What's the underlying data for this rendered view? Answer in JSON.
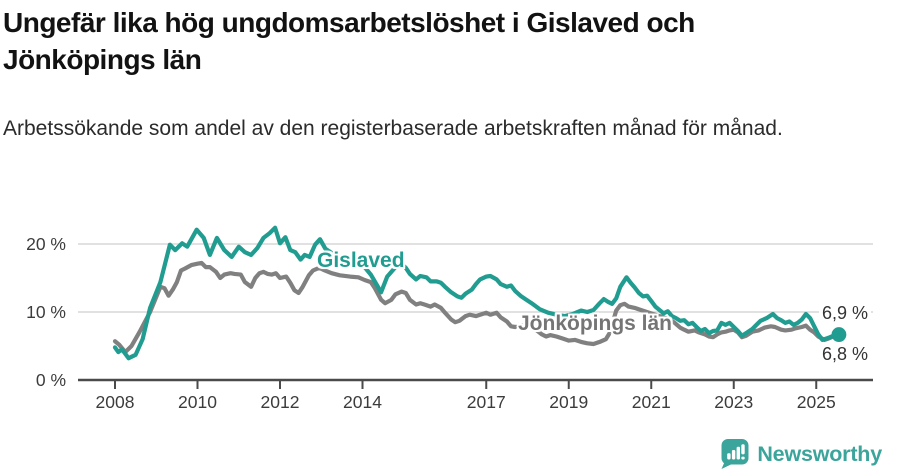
{
  "header": {
    "title": "Ungefär lika hög ungdomsarbetslöshet i Gislaved och Jönköpings län",
    "subtitle": "Arbetssökande som andel av den registerbaserade arbetskraften månad för månad."
  },
  "chart_data": {
    "type": "line",
    "title": "Ungefär lika hög ungdomsarbetslöshet i Gislaved och Jönköpings län",
    "xlabel": "",
    "ylabel": "Arbetssökande som andel av den registerbaserade arbetskraften",
    "x_unit": "decimal-year (månadsdata)",
    "y_unit": "percent",
    "ylim": [
      0,
      23.5
    ],
    "xlim": [
      2007.9,
      2026.5
    ],
    "grid": "horizontal",
    "legend_position": "inline-labels",
    "yticks": [
      {
        "value": 0,
        "label": "0 %"
      },
      {
        "value": 10,
        "label": "10 %"
      },
      {
        "value": 20,
        "label": "20 %"
      }
    ],
    "xticks": [
      {
        "value": 2008,
        "label": "2008"
      },
      {
        "value": 2010,
        "label": "2010"
      },
      {
        "value": 2012,
        "label": "2012"
      },
      {
        "value": 2014,
        "label": "2014"
      },
      {
        "value": 2017,
        "label": "2017"
      },
      {
        "value": 2019,
        "label": "2019"
      },
      {
        "value": 2021,
        "label": "2021"
      },
      {
        "value": 2023,
        "label": "2023"
      },
      {
        "value": 2025,
        "label": "2025"
      }
    ],
    "series": [
      {
        "name": "Gislaved",
        "color": "#219c90",
        "end_label": "6,9 %",
        "end_value": 6.9,
        "points": [
          [
            2008.0,
            4.8
          ],
          [
            2008.08,
            4.1
          ],
          [
            2008.17,
            4.5
          ],
          [
            2008.33,
            3.2
          ],
          [
            2008.5,
            3.7
          ],
          [
            2008.67,
            6.0
          ],
          [
            2008.85,
            10.6
          ],
          [
            2009.1,
            14.4
          ],
          [
            2009.33,
            19.9
          ],
          [
            2009.46,
            19.1
          ],
          [
            2009.63,
            20.1
          ],
          [
            2009.75,
            19.6
          ],
          [
            2009.98,
            22.1
          ],
          [
            2010.15,
            20.9
          ],
          [
            2010.3,
            18.4
          ],
          [
            2010.47,
            20.9
          ],
          [
            2010.65,
            19.1
          ],
          [
            2010.83,
            18.1
          ],
          [
            2011.0,
            19.6
          ],
          [
            2011.15,
            18.8
          ],
          [
            2011.3,
            18.4
          ],
          [
            2011.45,
            19.4
          ],
          [
            2011.6,
            20.9
          ],
          [
            2011.75,
            21.6
          ],
          [
            2011.88,
            22.4
          ],
          [
            2012.0,
            20.1
          ],
          [
            2012.13,
            21.0
          ],
          [
            2012.25,
            19.1
          ],
          [
            2012.37,
            18.8
          ],
          [
            2012.5,
            17.7
          ],
          [
            2012.6,
            18.4
          ],
          [
            2012.72,
            18.1
          ],
          [
            2012.85,
            19.9
          ],
          [
            2012.97,
            20.7
          ],
          [
            2013.1,
            19.3
          ],
          [
            2013.3,
            18.5
          ],
          [
            2013.55,
            17.8
          ],
          [
            2013.8,
            17.5
          ],
          [
            2014.05,
            16.6
          ],
          [
            2014.2,
            15.5
          ],
          [
            2014.45,
            12.9
          ],
          [
            2014.6,
            15.2
          ],
          [
            2014.8,
            16.6
          ],
          [
            2014.95,
            17.1
          ],
          [
            2015.05,
            16.5
          ],
          [
            2015.15,
            15.6
          ],
          [
            2015.3,
            14.8
          ],
          [
            2015.4,
            15.3
          ],
          [
            2015.55,
            15.1
          ],
          [
            2015.65,
            14.5
          ],
          [
            2015.8,
            14.5
          ],
          [
            2015.9,
            14.3
          ],
          [
            2016.0,
            13.7
          ],
          [
            2016.15,
            12.9
          ],
          [
            2016.3,
            12.3
          ],
          [
            2016.4,
            12.1
          ],
          [
            2016.5,
            12.7
          ],
          [
            2016.65,
            13.3
          ],
          [
            2016.75,
            14.1
          ],
          [
            2016.85,
            14.8
          ],
          [
            2017.0,
            15.2
          ],
          [
            2017.1,
            15.3
          ],
          [
            2017.25,
            14.8
          ],
          [
            2017.35,
            14.1
          ],
          [
            2017.5,
            13.7
          ],
          [
            2017.6,
            13.9
          ],
          [
            2017.7,
            13.1
          ],
          [
            2017.85,
            12.3
          ],
          [
            2017.95,
            11.9
          ],
          [
            2018.1,
            11.3
          ],
          [
            2018.3,
            10.4
          ],
          [
            2018.5,
            9.9
          ],
          [
            2018.7,
            9.6
          ],
          [
            2018.9,
            9.4
          ],
          [
            2019.1,
            9.7
          ],
          [
            2019.3,
            10.2
          ],
          [
            2019.45,
            10.0
          ],
          [
            2019.6,
            10.3
          ],
          [
            2019.75,
            11.3
          ],
          [
            2019.85,
            11.9
          ],
          [
            2019.95,
            11.5
          ],
          [
            2020.05,
            11.2
          ],
          [
            2020.15,
            12.0
          ],
          [
            2020.25,
            13.7
          ],
          [
            2020.4,
            15.1
          ],
          [
            2020.5,
            14.3
          ],
          [
            2020.6,
            13.6
          ],
          [
            2020.7,
            12.8
          ],
          [
            2020.8,
            12.3
          ],
          [
            2020.9,
            12.4
          ],
          [
            2021.0,
            11.6
          ],
          [
            2021.1,
            10.8
          ],
          [
            2021.2,
            10.3
          ],
          [
            2021.3,
            9.8
          ],
          [
            2021.4,
            10.1
          ],
          [
            2021.5,
            9.4
          ],
          [
            2021.6,
            9.1
          ],
          [
            2021.7,
            8.7
          ],
          [
            2021.8,
            8.8
          ],
          [
            2021.9,
            8.2
          ],
          [
            2022.0,
            8.4
          ],
          [
            2022.1,
            7.8
          ],
          [
            2022.2,
            7.2
          ],
          [
            2022.3,
            7.5
          ],
          [
            2022.4,
            6.9
          ],
          [
            2022.5,
            7.2
          ],
          [
            2022.6,
            7.3
          ],
          [
            2022.7,
            8.4
          ],
          [
            2022.8,
            8.1
          ],
          [
            2022.9,
            8.4
          ],
          [
            2023.0,
            7.8
          ],
          [
            2023.1,
            7.2
          ],
          [
            2023.2,
            6.5
          ],
          [
            2023.3,
            6.9
          ],
          [
            2023.45,
            7.5
          ],
          [
            2023.55,
            8.1
          ],
          [
            2023.65,
            8.7
          ],
          [
            2023.8,
            9.1
          ],
          [
            2023.95,
            9.7
          ],
          [
            2024.05,
            9.1
          ],
          [
            2024.15,
            8.8
          ],
          [
            2024.25,
            8.4
          ],
          [
            2024.35,
            8.6
          ],
          [
            2024.45,
            8.1
          ],
          [
            2024.55,
            8.4
          ],
          [
            2024.65,
            8.9
          ],
          [
            2024.75,
            9.7
          ],
          [
            2024.85,
            9.1
          ],
          [
            2024.95,
            7.9
          ],
          [
            2025.05,
            6.7
          ],
          [
            2025.15,
            5.9
          ],
          [
            2025.3,
            6.2
          ],
          [
            2025.45,
            6.6
          ],
          [
            2025.55,
            6.9
          ]
        ]
      },
      {
        "name": "Jönköpings län",
        "color": "#808080",
        "end_label": "6,8 %",
        "end_value": 6.8,
        "points": [
          [
            2008.0,
            5.7
          ],
          [
            2008.1,
            5.2
          ],
          [
            2008.25,
            4.1
          ],
          [
            2008.4,
            5.0
          ],
          [
            2008.6,
            7.1
          ],
          [
            2008.85,
            10.0
          ],
          [
            2009.1,
            13.7
          ],
          [
            2009.2,
            13.5
          ],
          [
            2009.3,
            12.4
          ],
          [
            2009.4,
            13.3
          ],
          [
            2009.5,
            14.4
          ],
          [
            2009.6,
            16.1
          ],
          [
            2009.7,
            16.4
          ],
          [
            2009.85,
            16.9
          ],
          [
            2010.0,
            17.1
          ],
          [
            2010.1,
            17.2
          ],
          [
            2010.2,
            16.6
          ],
          [
            2010.3,
            16.6
          ],
          [
            2010.45,
            15.9
          ],
          [
            2010.55,
            15.0
          ],
          [
            2010.65,
            15.5
          ],
          [
            2010.8,
            15.7
          ],
          [
            2010.9,
            15.6
          ],
          [
            2011.05,
            15.5
          ],
          [
            2011.15,
            14.4
          ],
          [
            2011.3,
            13.7
          ],
          [
            2011.4,
            15.0
          ],
          [
            2011.5,
            15.7
          ],
          [
            2011.6,
            15.9
          ],
          [
            2011.7,
            15.6
          ],
          [
            2011.8,
            15.5
          ],
          [
            2011.9,
            15.7
          ],
          [
            2012.0,
            15.0
          ],
          [
            2012.15,
            15.2
          ],
          [
            2012.25,
            14.3
          ],
          [
            2012.35,
            13.2
          ],
          [
            2012.45,
            12.8
          ],
          [
            2012.55,
            13.7
          ],
          [
            2012.7,
            15.4
          ],
          [
            2012.8,
            16.1
          ],
          [
            2012.95,
            16.5
          ],
          [
            2013.05,
            16.2
          ],
          [
            2013.25,
            15.7
          ],
          [
            2013.45,
            15.4
          ],
          [
            2013.7,
            15.2
          ],
          [
            2013.9,
            15.1
          ],
          [
            2014.05,
            14.7
          ],
          [
            2014.2,
            14.4
          ],
          [
            2014.3,
            13.5
          ],
          [
            2014.45,
            11.8
          ],
          [
            2014.55,
            11.3
          ],
          [
            2014.7,
            11.8
          ],
          [
            2014.8,
            12.6
          ],
          [
            2014.95,
            13.0
          ],
          [
            2015.05,
            12.8
          ],
          [
            2015.15,
            11.8
          ],
          [
            2015.3,
            11.1
          ],
          [
            2015.4,
            11.3
          ],
          [
            2015.5,
            11.1
          ],
          [
            2015.65,
            10.8
          ],
          [
            2015.75,
            11.1
          ],
          [
            2015.9,
            10.6
          ],
          [
            2016.0,
            9.9
          ],
          [
            2016.15,
            8.9
          ],
          [
            2016.25,
            8.5
          ],
          [
            2016.35,
            8.7
          ],
          [
            2016.5,
            9.4
          ],
          [
            2016.6,
            9.6
          ],
          [
            2016.75,
            9.4
          ],
          [
            2016.85,
            9.6
          ],
          [
            2017.0,
            9.9
          ],
          [
            2017.1,
            9.6
          ],
          [
            2017.25,
            9.9
          ],
          [
            2017.35,
            9.2
          ],
          [
            2017.5,
            8.6
          ],
          [
            2017.6,
            7.9
          ],
          [
            2017.7,
            7.8
          ],
          [
            2017.85,
            7.9
          ],
          [
            2017.95,
            8.2
          ],
          [
            2018.05,
            8.4
          ],
          [
            2018.2,
            7.4
          ],
          [
            2018.35,
            6.7
          ],
          [
            2018.45,
            6.4
          ],
          [
            2018.55,
            6.6
          ],
          [
            2018.7,
            6.4
          ],
          [
            2018.85,
            6.1
          ],
          [
            2019.0,
            5.8
          ],
          [
            2019.15,
            5.9
          ],
          [
            2019.3,
            5.6
          ],
          [
            2019.45,
            5.4
          ],
          [
            2019.6,
            5.3
          ],
          [
            2019.75,
            5.6
          ],
          [
            2019.9,
            6.0
          ],
          [
            2020.0,
            7.0
          ],
          [
            2020.15,
            10.2
          ],
          [
            2020.25,
            11.0
          ],
          [
            2020.35,
            11.2
          ],
          [
            2020.45,
            10.8
          ],
          [
            2020.6,
            10.6
          ],
          [
            2020.75,
            10.3
          ],
          [
            2020.95,
            9.9
          ],
          [
            2021.1,
            9.6
          ],
          [
            2021.3,
            9.2
          ],
          [
            2021.45,
            8.9
          ],
          [
            2021.55,
            8.5
          ],
          [
            2021.7,
            7.7
          ],
          [
            2021.8,
            7.4
          ],
          [
            2021.9,
            7.1
          ],
          [
            2022.05,
            7.3
          ],
          [
            2022.15,
            7.0
          ],
          [
            2022.3,
            6.7
          ],
          [
            2022.4,
            6.4
          ],
          [
            2022.5,
            6.3
          ],
          [
            2022.6,
            6.7
          ],
          [
            2022.7,
            7.0
          ],
          [
            2022.8,
            7.1
          ],
          [
            2022.9,
            7.3
          ],
          [
            2023.0,
            7.4
          ],
          [
            2023.1,
            7.0
          ],
          [
            2023.2,
            6.3
          ],
          [
            2023.3,
            6.5
          ],
          [
            2023.45,
            7.1
          ],
          [
            2023.6,
            7.3
          ],
          [
            2023.75,
            7.7
          ],
          [
            2023.9,
            7.9
          ],
          [
            2024.0,
            7.8
          ],
          [
            2024.15,
            7.4
          ],
          [
            2024.25,
            7.3
          ],
          [
            2024.4,
            7.4
          ],
          [
            2024.5,
            7.6
          ],
          [
            2024.65,
            7.8
          ],
          [
            2024.75,
            8.0
          ],
          [
            2024.85,
            7.4
          ],
          [
            2024.95,
            7.0
          ],
          [
            2025.05,
            6.4
          ],
          [
            2025.2,
            5.9
          ],
          [
            2025.3,
            6.1
          ],
          [
            2025.45,
            6.5
          ],
          [
            2025.55,
            6.8
          ]
        ]
      }
    ]
  },
  "footer": {
    "brand": "Newsworthy"
  },
  "colors": {
    "teal": "#219c90",
    "gray": "#808080",
    "gray_label": "#757575",
    "brand_teal": "#3ba49b",
    "axis": "#4a4a4a",
    "grid": "#d7d7d7",
    "tick_text": "#3c3c3c"
  }
}
